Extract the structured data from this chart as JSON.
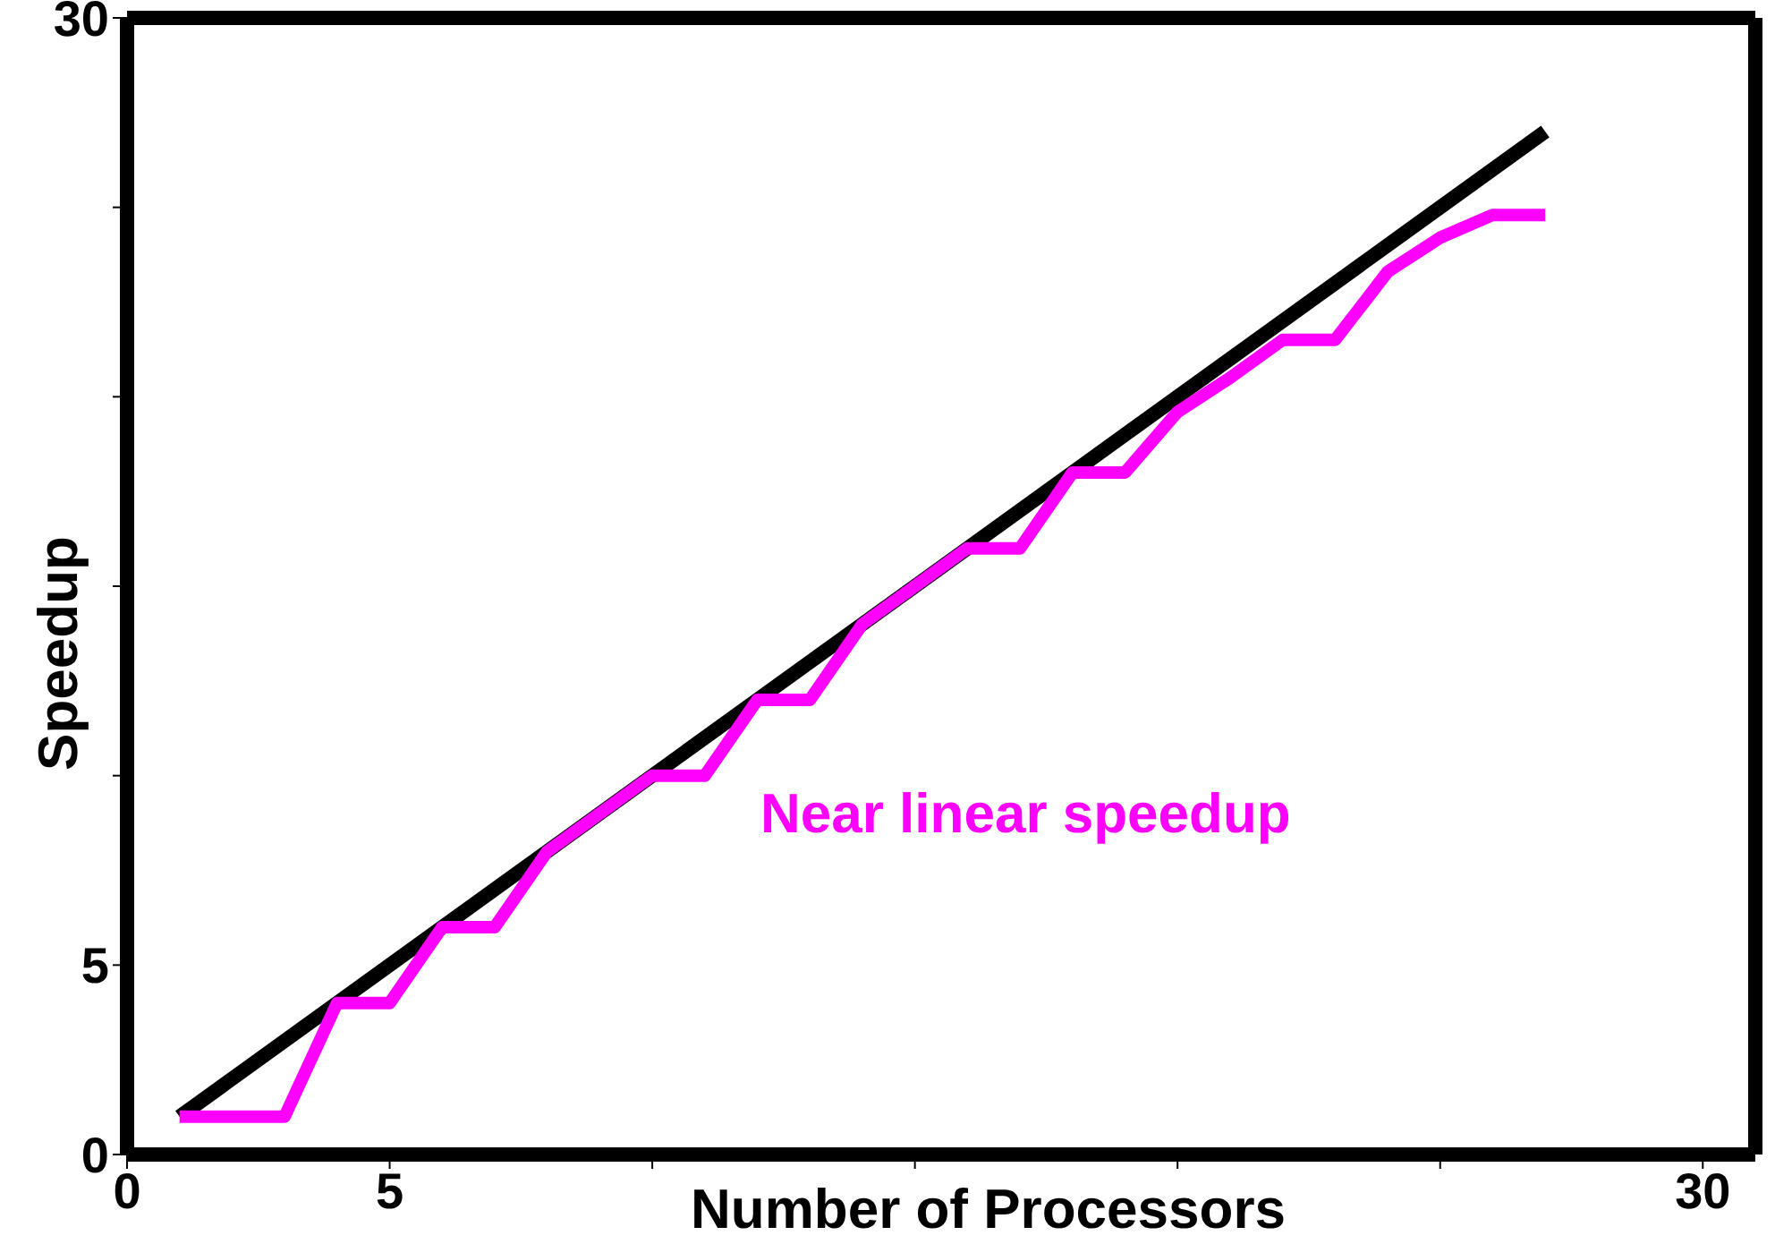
{
  "chart_data": {
    "type": "line",
    "xlabel": "Number of Processors",
    "ylabel": "Speedup",
    "xlim": [
      0,
      31
    ],
    "ylim": [
      0,
      30
    ],
    "xticks": [
      0,
      5,
      {
        "value": 10,
        "label": null
      },
      {
        "value": 15,
        "label": null
      },
      {
        "value": 20,
        "label": null
      },
      {
        "value": 25,
        "label": null
      },
      30
    ],
    "yticks": [
      0,
      5,
      {
        "value": 10,
        "label": null
      },
      {
        "value": 15,
        "label": null
      },
      {
        "value": 20,
        "label": null
      },
      {
        "value": 25,
        "label": null
      },
      30
    ],
    "marker": "none",
    "line_style": "solid",
    "series": [
      {
        "color": "#000000",
        "x": [
          1,
          27
        ],
        "values": [
          1,
          27
        ]
      },
      {
        "name": "Near linear speedup",
        "color": "#ff00ff",
        "x": [
          1,
          2,
          3,
          4,
          5,
          6,
          7,
          8,
          9,
          10,
          11,
          12,
          13,
          14,
          15,
          16,
          17,
          18,
          19,
          20,
          21,
          22,
          23,
          24,
          25,
          26,
          27
        ],
        "values": [
          1,
          1,
          1,
          4,
          4,
          6,
          6,
          8,
          9,
          10,
          10,
          12,
          12,
          14,
          15,
          16,
          16,
          18,
          18,
          19.6,
          20.5,
          21.5,
          21.5,
          23.3,
          24.2,
          24.8,
          24.8
        ]
      }
    ]
  }
}
